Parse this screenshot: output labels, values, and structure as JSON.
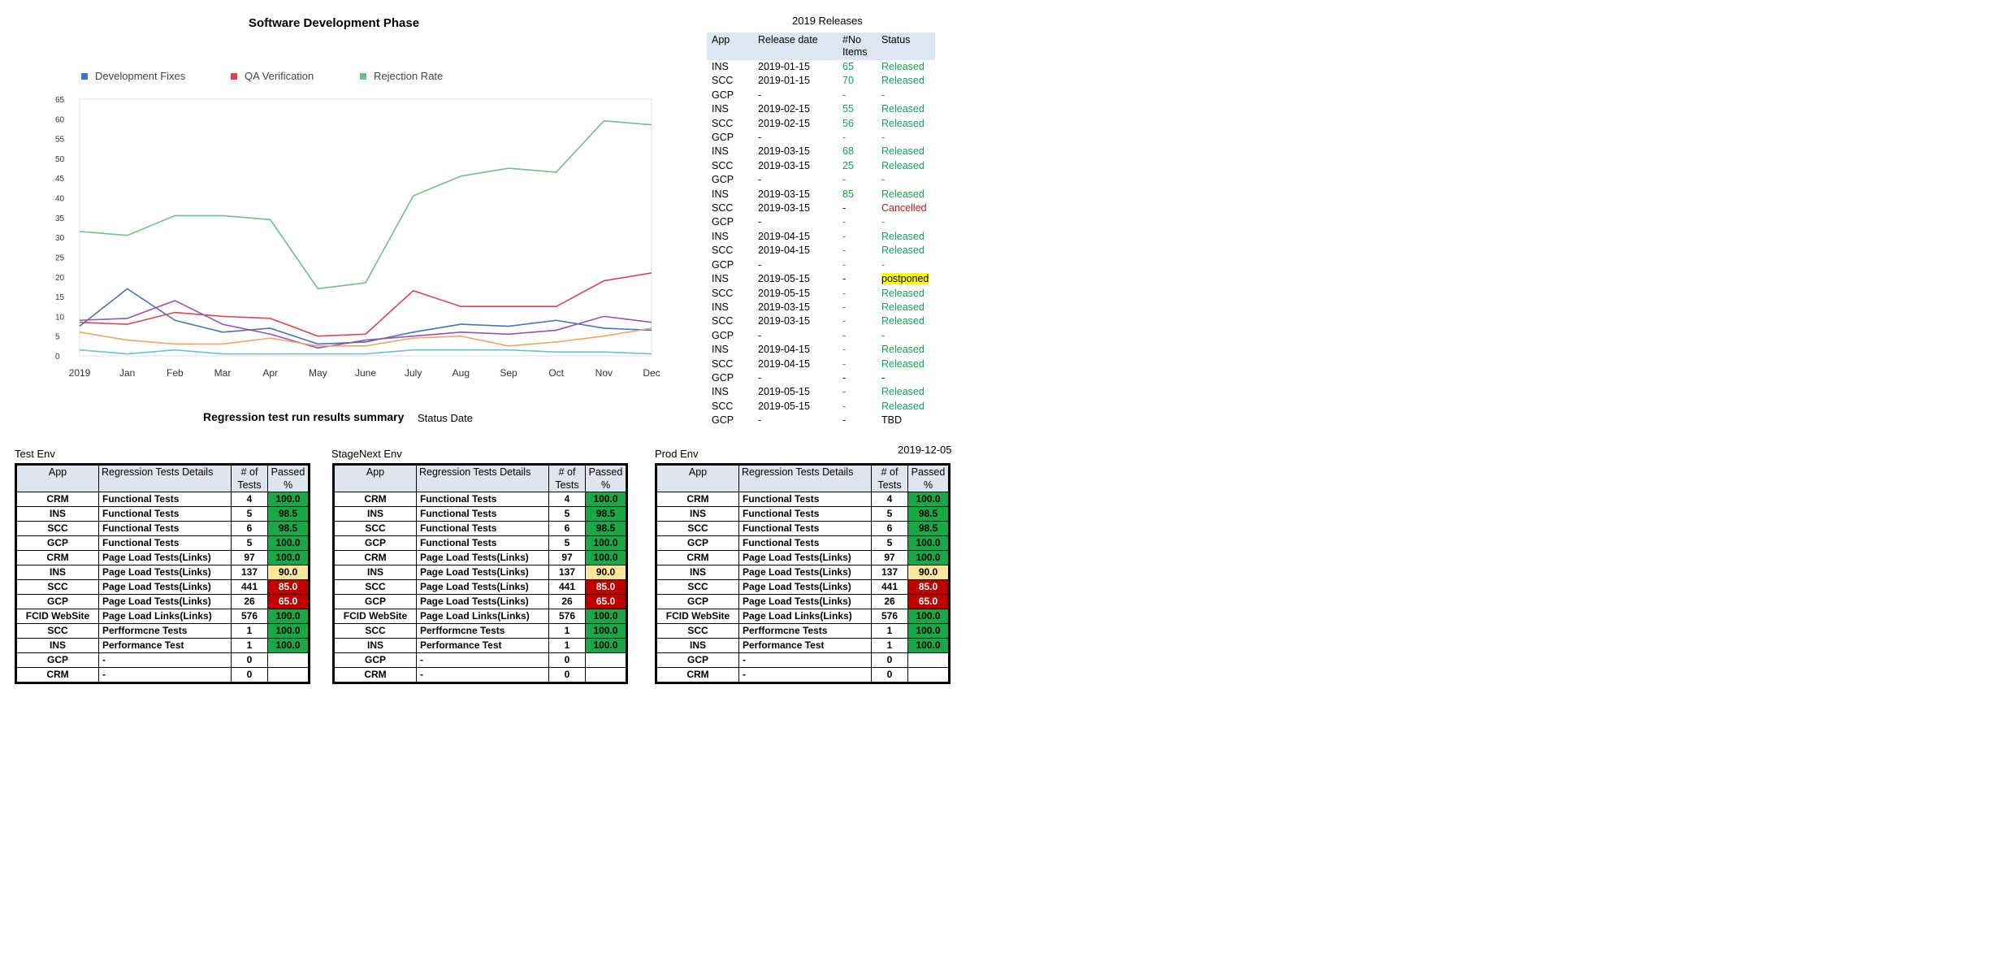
{
  "chart_data": {
    "type": "line",
    "title": "Software Development Phase",
    "categories": [
      "2019",
      "Jan",
      "Feb",
      "Mar",
      "Apr",
      "May",
      "June",
      "July",
      "Aug",
      "Sep",
      "Oct",
      "Nov",
      "Dec"
    ],
    "y_tick_labels": [
      "0",
      "5",
      "10",
      "15",
      "20",
      "25",
      "30",
      "35",
      "40",
      "45",
      "50",
      "55",
      "60",
      "65"
    ],
    "ylim": [
      0,
      65
    ],
    "legend": [
      {
        "name": "Development Fixes",
        "color": "#4472c4"
      },
      {
        "name": "QA Verification",
        "color": "#e0424a"
      },
      {
        "name": "Rejection Rate",
        "color": "#6dbf8e"
      }
    ],
    "series": [
      {
        "name": "Rejection Rate",
        "color": "#6dbf8e",
        "values": [
          31.5,
          30.5,
          35.5,
          35.5,
          34.5,
          17,
          18.5,
          40.5,
          45.5,
          47.5,
          46.5,
          59.5,
          58.5
        ]
      },
      {
        "name": "QA Verification",
        "color": "#e0424a",
        "values": [
          8.5,
          8,
          11,
          10,
          9.5,
          5,
          5.5,
          16.5,
          12.5,
          12.5,
          12.5,
          19,
          21
        ]
      },
      {
        "color": "#4472c4",
        "values": [
          7.5,
          17,
          9,
          6,
          7,
          3,
          3.5,
          6,
          8,
          7.5,
          9,
          7,
          6.5
        ]
      },
      {
        "color": "#9b4fb0",
        "values": [
          9,
          9.5,
          14,
          8,
          5.5,
          2,
          4,
          5,
          6,
          5.5,
          6.5,
          10,
          8.5
        ]
      },
      {
        "color": "#f0a35e",
        "values": [
          6,
          4,
          3,
          3,
          4.5,
          2.5,
          2.5,
          4.5,
          5,
          2.5,
          3.5,
          5,
          7
        ]
      },
      {
        "color": "#67c3cf",
        "values": [
          1.5,
          0.5,
          1.5,
          0.5,
          0.5,
          0.5,
          0.5,
          1.5,
          1.5,
          1.5,
          1,
          1,
          0.5
        ]
      }
    ]
  },
  "releases": {
    "title": "2019 Releases",
    "headers": [
      "App",
      "Release date",
      "#No Items",
      "Status"
    ],
    "rows": [
      {
        "app": "INS",
        "date": "2019-01-15",
        "items": "65",
        "status": "Released",
        "kind": "released"
      },
      {
        "app": "SCC",
        "date": "2019-01-15",
        "items": "70",
        "status": "Released",
        "kind": "released"
      },
      {
        "app": "GCP",
        "date": "-",
        "items": "-",
        "status": "-",
        "kind": "released"
      },
      {
        "app": "INS",
        "date": "2019-02-15",
        "items": "55",
        "status": "Released",
        "kind": "released"
      },
      {
        "app": "SCC",
        "date": "2019-02-15",
        "items": "56",
        "status": "Released",
        "kind": "released"
      },
      {
        "app": "GCP",
        "date": "-",
        "items": "-",
        "status": "-",
        "kind": "released"
      },
      {
        "app": "INS",
        "date": "2019-03-15",
        "items": "68",
        "status": "Released",
        "kind": "released"
      },
      {
        "app": "SCC",
        "date": "2019-03-15",
        "items": "25",
        "status": "Released",
        "kind": "released"
      },
      {
        "app": "GCP",
        "date": "-",
        "items": "-",
        "status": "-",
        "kind": "released"
      },
      {
        "app": "INS",
        "date": "2019-03-15",
        "items": "85",
        "status": "Released",
        "kind": "released"
      },
      {
        "app": "SCC",
        "date": "2019-03-15",
        "items": "-",
        "status": "Cancelled",
        "kind": "cancelled"
      },
      {
        "app": "GCP",
        "date": "-",
        "items": "-",
        "status": "-",
        "kind": "released"
      },
      {
        "app": "INS",
        "date": "2019-04-15",
        "items": "-",
        "status": "Released",
        "kind": "released"
      },
      {
        "app": "SCC",
        "date": "2019-04-15",
        "items": "-",
        "status": "Released",
        "kind": "released"
      },
      {
        "app": "GCP",
        "date": "-",
        "items": "-",
        "status": "-",
        "kind": "released"
      },
      {
        "app": "INS",
        "date": "2019-05-15",
        "items": "-",
        "status": "postponed",
        "kind": "postponed"
      },
      {
        "app": "SCC",
        "date": "2019-05-15",
        "items": "-",
        "status": "Released",
        "kind": "released"
      },
      {
        "app": "INS",
        "date": "2019-03-15",
        "items": "-",
        "status": "Released",
        "kind": "released"
      },
      {
        "app": "SCC",
        "date": "2019-03-15",
        "items": "-",
        "status": "Released",
        "kind": "released"
      },
      {
        "app": "GCP",
        "date": "-",
        "items": "-",
        "status": "-",
        "kind": "released"
      },
      {
        "app": "INS",
        "date": "2019-04-15",
        "items": "-",
        "status": "Released",
        "kind": "released"
      },
      {
        "app": "SCC",
        "date": "2019-04-15",
        "items": "-",
        "status": "Released",
        "kind": "released"
      },
      {
        "app": "GCP",
        "date": "-",
        "items": "-",
        "status": "-",
        "kind": "plain"
      },
      {
        "app": "INS",
        "date": "2019-05-15",
        "items": "-",
        "status": "Released",
        "kind": "released"
      },
      {
        "app": "SCC",
        "date": "2019-05-15",
        "items": "-",
        "status": "Released",
        "kind": "released"
      },
      {
        "app": "GCP",
        "date": "-",
        "items": "-",
        "status": "TBD",
        "kind": "plain"
      }
    ]
  },
  "summary": {
    "title": "Regression  test run results summary",
    "status_date_label": "Status Date",
    "status_date": "2019-12-05"
  },
  "regression": {
    "headers": [
      "App",
      "Regression Tests Details",
      "# of Tests",
      "Passed %"
    ],
    "envs": [
      {
        "label": "Test Env",
        "rows": [
          {
            "app": "CRM",
            "details": "Functional Tests",
            "tests": "4",
            "passed": "100.0",
            "color": "green"
          },
          {
            "app": "INS",
            "details": "Functional Tests",
            "tests": "5",
            "passed": "98.5",
            "color": "green"
          },
          {
            "app": "SCC",
            "details": "Functional Tests",
            "tests": "6",
            "passed": "98.5",
            "color": "green"
          },
          {
            "app": "GCP",
            "details": "Functional Tests",
            "tests": "5",
            "passed": "100.0",
            "color": "green"
          },
          {
            "app": "CRM",
            "details": "Page Load Tests(Links)",
            "tests": "97",
            "passed": "100.0",
            "color": "green"
          },
          {
            "app": "INS",
            "details": "Page Load Tests(Links)",
            "tests": "137",
            "passed": "90.0",
            "color": "yellow"
          },
          {
            "app": "SCC",
            "details": "Page Load Tests(Links)",
            "tests": "441",
            "passed": "85.0",
            "color": "red"
          },
          {
            "app": "GCP",
            "details": "Page Load Tests(Links)",
            "tests": "26",
            "passed": "65.0",
            "color": "red"
          },
          {
            "app": "FCID WebSite",
            "details": "Page Load Links(Links)",
            "tests": "576",
            "passed": "100.0",
            "color": "green"
          },
          {
            "app": "SCC",
            "details": "Perfformcne Tests",
            "tests": "1",
            "passed": "100.0",
            "color": "green"
          },
          {
            "app": "INS",
            "details": "Performance Test",
            "tests": "1",
            "passed": "100.0",
            "color": "green"
          },
          {
            "app": "GCP",
            "details": "-",
            "tests": "0",
            "passed": "",
            "color": "none"
          },
          {
            "app": "CRM",
            "details": "-",
            "tests": "0",
            "passed": "",
            "color": "none"
          }
        ]
      },
      {
        "label": "StageNext Env",
        "rows": [
          {
            "app": "CRM",
            "details": "Functional Tests",
            "tests": "4",
            "passed": "100.0",
            "color": "green"
          },
          {
            "app": "INS",
            "details": "Functional Tests",
            "tests": "5",
            "passed": "98.5",
            "color": "green"
          },
          {
            "app": "SCC",
            "details": "Functional Tests",
            "tests": "6",
            "passed": "98.5",
            "color": "green"
          },
          {
            "app": "GCP",
            "details": "Functional Tests",
            "tests": "5",
            "passed": "100.0",
            "color": "green"
          },
          {
            "app": "CRM",
            "details": "Page Load Tests(Links)",
            "tests": "97",
            "passed": "100.0",
            "color": "green"
          },
          {
            "app": "INS",
            "details": "Page Load Tests(Links)",
            "tests": "137",
            "passed": "90.0",
            "color": "yellow"
          },
          {
            "app": "SCC",
            "details": "Page Load Tests(Links)",
            "tests": "441",
            "passed": "85.0",
            "color": "red"
          },
          {
            "app": "GCP",
            "details": "Page Load Tests(Links)",
            "tests": "26",
            "passed": "65.0",
            "color": "red"
          },
          {
            "app": "FCID WebSite",
            "details": "Page Load Links(Links)",
            "tests": "576",
            "passed": "100.0",
            "color": "green"
          },
          {
            "app": "SCC",
            "details": "Perfformcne Tests",
            "tests": "1",
            "passed": "100.0",
            "color": "green"
          },
          {
            "app": "INS",
            "details": "Performance Test",
            "tests": "1",
            "passed": "100.0",
            "color": "green"
          },
          {
            "app": "GCP",
            "details": "-",
            "tests": "0",
            "passed": "",
            "color": "none"
          },
          {
            "app": "CRM",
            "details": "-",
            "tests": "0",
            "passed": "",
            "color": "none"
          }
        ]
      },
      {
        "label": "Prod Env",
        "rows": [
          {
            "app": "CRM",
            "details": "Functional Tests",
            "tests": "4",
            "passed": "100.0",
            "color": "green"
          },
          {
            "app": "INS",
            "details": "Functional Tests",
            "tests": "5",
            "passed": "98.5",
            "color": "green"
          },
          {
            "app": "SCC",
            "details": "Functional Tests",
            "tests": "6",
            "passed": "98.5",
            "color": "green"
          },
          {
            "app": "GCP",
            "details": "Functional Tests",
            "tests": "5",
            "passed": "100.0",
            "color": "green"
          },
          {
            "app": "CRM",
            "details": "Page Load Tests(Links)",
            "tests": "97",
            "passed": "100.0",
            "color": "green"
          },
          {
            "app": "INS",
            "details": "Page Load Tests(Links)",
            "tests": "137",
            "passed": "90.0",
            "color": "yellow"
          },
          {
            "app": "SCC",
            "details": "Page Load Tests(Links)",
            "tests": "441",
            "passed": "85.0",
            "color": "red"
          },
          {
            "app": "GCP",
            "details": "Page Load Tests(Links)",
            "tests": "26",
            "passed": "65.0",
            "color": "red"
          },
          {
            "app": "FCID WebSite",
            "details": "Page Load Links(Links)",
            "tests": "576",
            "passed": "100.0",
            "color": "green"
          },
          {
            "app": "SCC",
            "details": "Perfformcne Tests",
            "tests": "1",
            "passed": "100.0",
            "color": "green"
          },
          {
            "app": "INS",
            "details": "Performance Test",
            "tests": "1",
            "passed": "100.0",
            "color": "green"
          },
          {
            "app": "GCP",
            "details": "-",
            "tests": "0",
            "passed": "",
            "color": "none"
          },
          {
            "app": "CRM",
            "details": "-",
            "tests": "0",
            "passed": "",
            "color": "none"
          }
        ]
      }
    ]
  }
}
